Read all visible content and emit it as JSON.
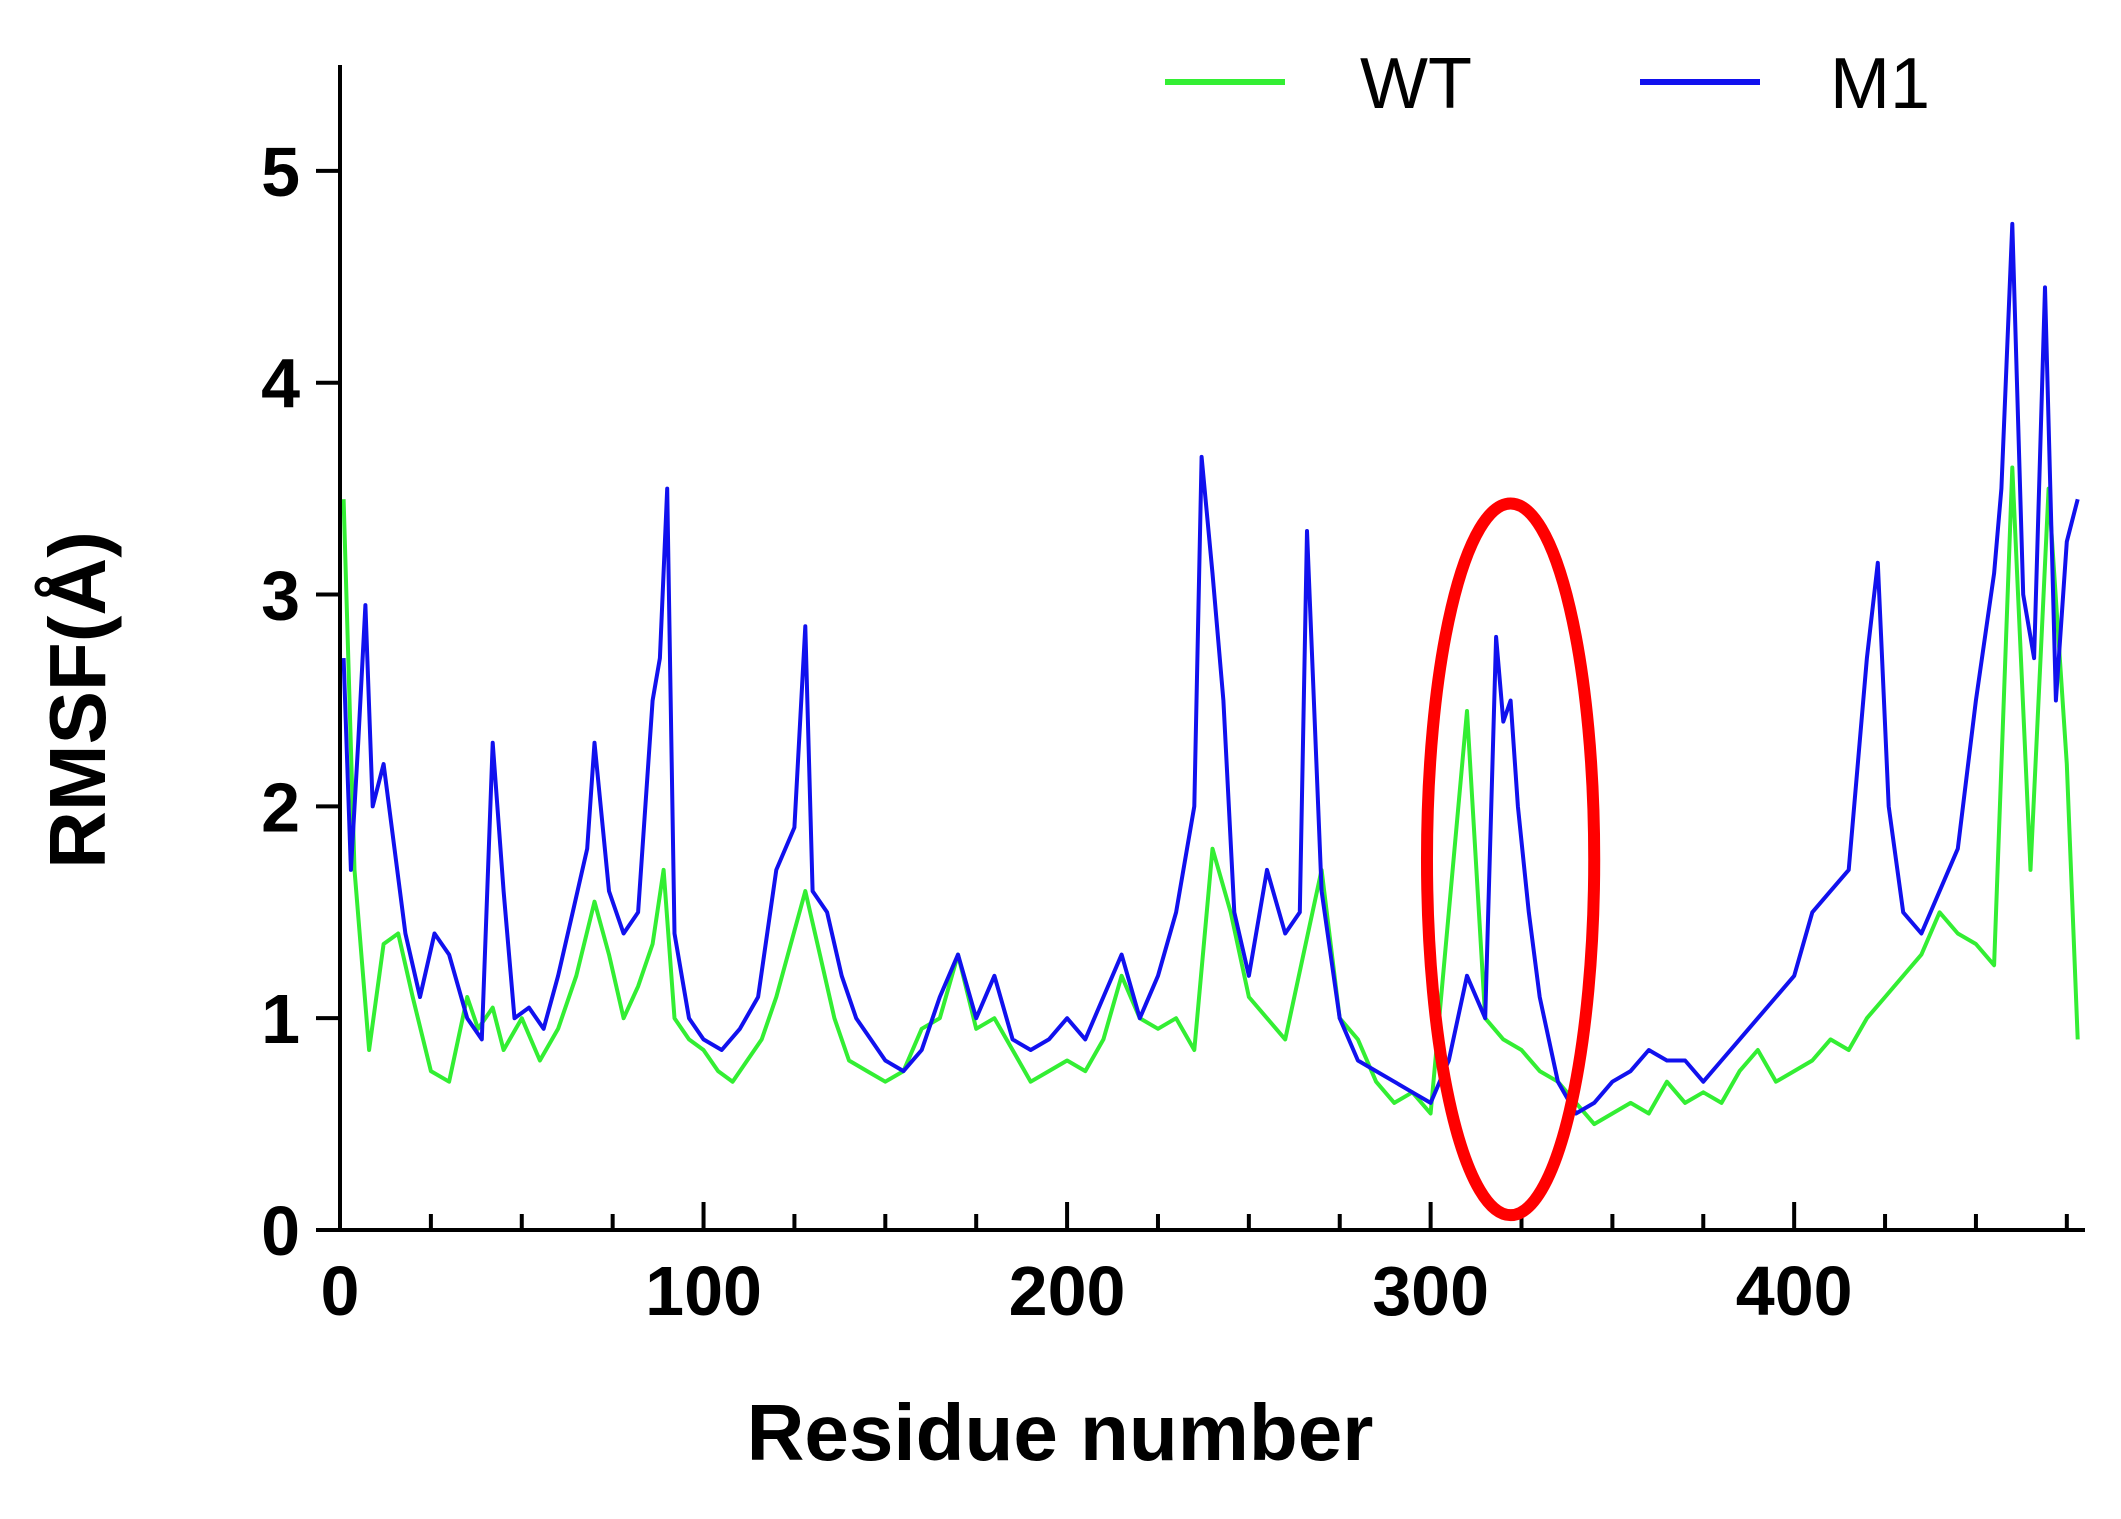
{
  "chart_data": {
    "type": "line",
    "title": "",
    "xlabel": "Residue number",
    "ylabel": "RMSF(Å)",
    "xlim": [
      0,
      480
    ],
    "ylim": [
      0,
      5.5
    ],
    "x_ticks": [
      0,
      100,
      200,
      300,
      400
    ],
    "y_ticks": [
      0,
      1,
      2,
      3,
      4,
      5
    ],
    "grid": false,
    "legend_position": "top-right",
    "highlight": {
      "shape": "ellipse",
      "color": "#ff0000",
      "x_center": 322,
      "y_center": 1.75,
      "x_halfwidth": 23,
      "y_halfheight": 1.68
    },
    "series": [
      {
        "name": "WT",
        "color": "#33ee33",
        "x": [
          1,
          4,
          8,
          12,
          16,
          20,
          25,
          30,
          35,
          38,
          42,
          45,
          50,
          55,
          60,
          65,
          70,
          74,
          78,
          82,
          86,
          89,
          92,
          96,
          100,
          104,
          108,
          112,
          116,
          120,
          124,
          128,
          132,
          136,
          140,
          145,
          150,
          155,
          160,
          165,
          170,
          175,
          180,
          185,
          190,
          195,
          200,
          205,
          210,
          215,
          220,
          225,
          230,
          235,
          240,
          245,
          250,
          255,
          260,
          265,
          270,
          275,
          280,
          285,
          290,
          295,
          300,
          305,
          310,
          315,
          320,
          325,
          330,
          335,
          340,
          345,
          350,
          355,
          360,
          365,
          370,
          375,
          380,
          385,
          390,
          395,
          400,
          405,
          410,
          415,
          420,
          425,
          430,
          435,
          440,
          445,
          450,
          455,
          460,
          465,
          470,
          475,
          478
        ],
        "y": [
          3.45,
          1.7,
          0.85,
          1.35,
          1.4,
          1.1,
          0.75,
          0.7,
          1.1,
          0.95,
          1.05,
          0.85,
          1.0,
          0.8,
          0.95,
          1.2,
          1.55,
          1.3,
          1.0,
          1.15,
          1.35,
          1.7,
          1.0,
          0.9,
          0.85,
          0.75,
          0.7,
          0.8,
          0.9,
          1.1,
          1.35,
          1.6,
          1.3,
          1.0,
          0.8,
          0.75,
          0.7,
          0.75,
          0.95,
          1.0,
          1.3,
          0.95,
          1.0,
          0.85,
          0.7,
          0.75,
          0.8,
          0.75,
          0.9,
          1.2,
          1.0,
          0.95,
          1.0,
          0.85,
          1.8,
          1.5,
          1.1,
          1.0,
          0.9,
          1.3,
          1.7,
          1.0,
          0.9,
          0.7,
          0.6,
          0.65,
          0.55,
          1.5,
          2.45,
          1.0,
          0.9,
          0.85,
          0.75,
          0.7,
          0.6,
          0.5,
          0.55,
          0.6,
          0.55,
          0.7,
          0.6,
          0.65,
          0.6,
          0.75,
          0.85,
          0.7,
          0.75,
          0.8,
          0.9,
          0.85,
          1.0,
          1.1,
          1.2,
          1.3,
          1.5,
          1.4,
          1.35,
          1.25,
          3.6,
          1.7,
          3.5,
          2.2,
          0.9
        ]
      },
      {
        "name": "M1",
        "color": "#1111ee",
        "x": [
          1,
          3,
          5,
          7,
          9,
          12,
          15,
          18,
          22,
          26,
          30,
          35,
          39,
          42,
          45,
          48,
          52,
          56,
          60,
          64,
          68,
          70,
          74,
          78,
          82,
          86,
          88,
          90,
          92,
          96,
          100,
          105,
          110,
          115,
          120,
          125,
          128,
          130,
          134,
          138,
          142,
          146,
          150,
          155,
          160,
          165,
          170,
          175,
          180,
          185,
          190,
          195,
          200,
          205,
          210,
          215,
          220,
          225,
          230,
          235,
          237,
          240,
          243,
          246,
          250,
          255,
          260,
          264,
          266,
          270,
          275,
          280,
          285,
          290,
          295,
          300,
          305,
          310,
          315,
          318,
          320,
          322,
          324,
          327,
          330,
          335,
          340,
          345,
          350,
          355,
          360,
          365,
          370,
          375,
          380,
          385,
          390,
          395,
          400,
          405,
          410,
          415,
          420,
          423,
          426,
          430,
          435,
          440,
          445,
          450,
          455,
          457,
          460,
          463,
          466,
          469,
          472,
          475,
          478
        ],
        "y": [
          2.7,
          1.7,
          2.3,
          2.95,
          2.0,
          2.2,
          1.8,
          1.4,
          1.1,
          1.4,
          1.3,
          1.0,
          0.9,
          2.3,
          1.6,
          1.0,
          1.05,
          0.95,
          1.2,
          1.5,
          1.8,
          2.3,
          1.6,
          1.4,
          1.5,
          2.5,
          2.7,
          3.5,
          1.4,
          1.0,
          0.9,
          0.85,
          0.95,
          1.1,
          1.7,
          1.9,
          2.85,
          1.6,
          1.5,
          1.2,
          1.0,
          0.9,
          0.8,
          0.75,
          0.85,
          1.1,
          1.3,
          1.0,
          1.2,
          0.9,
          0.85,
          0.9,
          1.0,
          0.9,
          1.1,
          1.3,
          1.0,
          1.2,
          1.5,
          2.0,
          3.65,
          3.1,
          2.5,
          1.5,
          1.2,
          1.7,
          1.4,
          1.5,
          3.3,
          1.6,
          1.0,
          0.8,
          0.75,
          0.7,
          0.65,
          0.6,
          0.8,
          1.2,
          1.0,
          2.8,
          2.4,
          2.5,
          2.0,
          1.5,
          1.1,
          0.7,
          0.55,
          0.6,
          0.7,
          0.75,
          0.85,
          0.8,
          0.8,
          0.7,
          0.8,
          0.9,
          1.0,
          1.1,
          1.2,
          1.5,
          1.6,
          1.7,
          2.7,
          3.15,
          2.0,
          1.5,
          1.4,
          1.6,
          1.8,
          2.5,
          3.1,
          3.5,
          4.75,
          3.0,
          2.7,
          4.45,
          2.5,
          3.25,
          3.45
        ]
      }
    ]
  }
}
